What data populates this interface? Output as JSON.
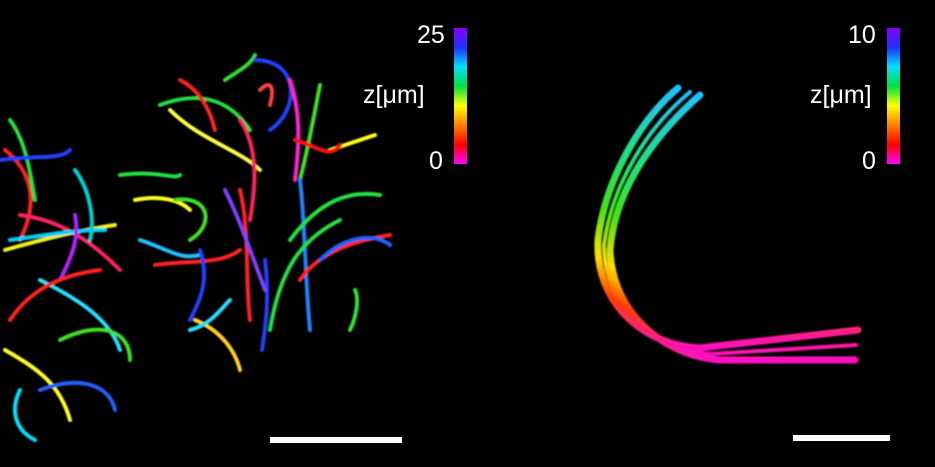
{
  "panels": [
    {
      "colorbar": {
        "max_label": "25",
        "min_label": "0",
        "axis_label": "z[μm]",
        "max_value": 25,
        "min_value": 0,
        "colors": [
          "#8a00ff",
          "#2030ff",
          "#00e0ff",
          "#00e040",
          "#ffff00",
          "#ff8000",
          "#ff0000",
          "#ff00ff"
        ]
      }
    },
    {
      "colorbar": {
        "max_label": "10",
        "min_label": "0",
        "axis_label": "z[μm]",
        "max_value": 10,
        "min_value": 0,
        "colors": [
          "#8a00ff",
          "#2030ff",
          "#00e0ff",
          "#00e040",
          "#ffff00",
          "#ff8000",
          "#ff0000",
          "#ff00ff"
        ]
      }
    }
  ]
}
